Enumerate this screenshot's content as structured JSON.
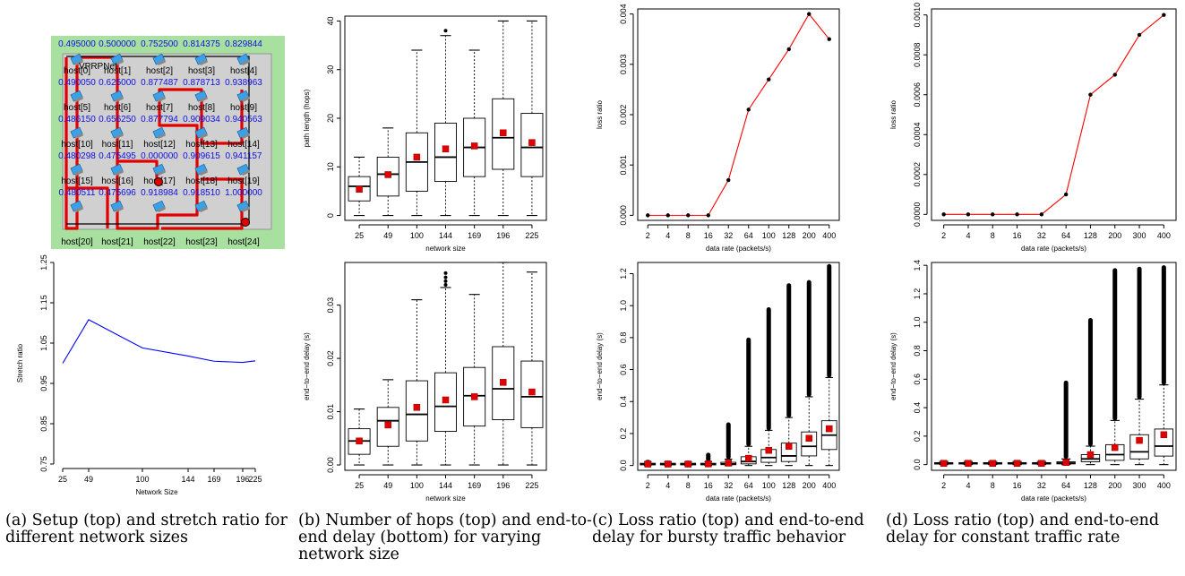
{
  "captions": [
    "(a) Setup (top) and stretch ratio for different network sizes",
    "(b) Number of hops (top) and end-to-end delay (bottom) for varying network size",
    "(c) Loss ratio (top) and end-to-end delay for bursty traffic behavior",
    "(d) Loss ratio (top) and end-to-end delay for constant traffic rate"
  ],
  "setup": {
    "network_label": "VPRPNet",
    "hosts": [
      {
        "name": "host[0]",
        "value": "0.490050"
      },
      {
        "name": "host[1]",
        "value": "0.625000"
      },
      {
        "name": "host[2]",
        "value": "0.877487"
      },
      {
        "name": "host[3]",
        "value": "0.878713"
      },
      {
        "name": "host[4]",
        "value": "0.938963"
      },
      {
        "name": "host[5]",
        "value": "0.486150"
      },
      {
        "name": "host[6]",
        "value": "0.656250"
      },
      {
        "name": "host[7]",
        "value": "0.877794"
      },
      {
        "name": "host[8]",
        "value": "0.909034"
      },
      {
        "name": "host[9]",
        "value": "0.940563"
      },
      {
        "name": "host[10]",
        "value": "0.480298"
      },
      {
        "name": "host[11]",
        "value": "0.475495"
      },
      {
        "name": "host[12]",
        "value": "0.000000"
      },
      {
        "name": "host[13]",
        "value": "0.909615"
      },
      {
        "name": "host[14]",
        "value": "0.941157"
      },
      {
        "name": "host[15]",
        "value": "0.480511"
      },
      {
        "name": "host[16]",
        "value": "0.475696"
      },
      {
        "name": "host[17]",
        "value": "0.918984"
      },
      {
        "name": "host[18]",
        "value": "0.918510"
      },
      {
        "name": "host[19]",
        "value": "1.000000"
      },
      {
        "name": "host[20]",
        "value": "0.495000"
      },
      {
        "name": "host[21]",
        "value": "0.500000"
      },
      {
        "name": "host[22]",
        "value": "0.752500"
      },
      {
        "name": "host[23]",
        "value": "0.814375"
      },
      {
        "name": "host[24]",
        "value": "0.829844"
      }
    ]
  },
  "chart_data": [
    {
      "id": "stretch",
      "type": "line",
      "xlabel": "Network Size",
      "ylabel": "Stretch ratio",
      "x": [
        25,
        49,
        100,
        144,
        169,
        196,
        225
      ],
      "y": [
        1.0,
        1.108,
        1.038,
        1.018,
        1.005,
        1.002,
        1.006
      ],
      "xlim": [
        25,
        225
      ],
      "ylim": [
        0.75,
        1.25
      ],
      "yticks": [
        "0.75",
        "0.85",
        "0.95",
        "1.05",
        "1.15",
        "1.25"
      ],
      "color": "#0000ff"
    },
    {
      "id": "hops",
      "type": "box",
      "xlabel": "network size",
      "ylabel": "path length (hops)",
      "categories": [
        "25",
        "49",
        "100",
        "144",
        "169",
        "196",
        "225"
      ],
      "ylim": [
        -1,
        41
      ],
      "yticks": [
        "0",
        "10",
        "20",
        "30",
        "40"
      ],
      "boxes": [
        {
          "min": 0,
          "q1": 3,
          "median": 6,
          "q3": 8,
          "max": 12,
          "mean": 5.4,
          "outliers": []
        },
        {
          "min": 0,
          "q1": 4,
          "median": 8.5,
          "q3": 12,
          "max": 18,
          "mean": 8.4,
          "outliers": []
        },
        {
          "min": 0,
          "q1": 5,
          "median": 11,
          "q3": 17,
          "max": 34,
          "mean": 12,
          "outliers": []
        },
        {
          "min": 0,
          "q1": 7,
          "median": 12,
          "q3": 19,
          "max": 37,
          "mean": 13.7,
          "outliers": [
            38
          ]
        },
        {
          "min": 0,
          "q1": 8,
          "median": 14,
          "q3": 20,
          "max": 34,
          "mean": 14.3,
          "outliers": []
        },
        {
          "min": 0,
          "q1": 9.5,
          "median": 16,
          "q3": 24,
          "max": 40,
          "mean": 17,
          "outliers": []
        },
        {
          "min": 0,
          "q1": 8,
          "median": 14,
          "q3": 21,
          "max": 40,
          "mean": 15,
          "outliers": []
        }
      ]
    },
    {
      "id": "delay_size",
      "type": "box",
      "xlabel": "network size",
      "ylabel": "end−to−end delay (s)",
      "categories": [
        "25",
        "49",
        "100",
        "144",
        "169",
        "196",
        "225"
      ],
      "ylim": [
        -0.001,
        0.038
      ],
      "yticks": [
        "0.00",
        "0.01",
        "0.02",
        "0.03"
      ],
      "boxes": [
        {
          "min": 0,
          "q1": 0.002,
          "median": 0.0045,
          "q3": 0.0068,
          "max": 0.0105,
          "mean": 0.0045,
          "outliers": []
        },
        {
          "min": 0,
          "q1": 0.0035,
          "median": 0.0083,
          "q3": 0.0108,
          "max": 0.016,
          "mean": 0.0075,
          "outliers": []
        },
        {
          "min": 0,
          "q1": 0.0045,
          "median": 0.0095,
          "q3": 0.0158,
          "max": 0.031,
          "mean": 0.0108,
          "outliers": []
        },
        {
          "min": 0,
          "q1": 0.0063,
          "median": 0.011,
          "q3": 0.0173,
          "max": 0.0333,
          "mean": 0.0122,
          "outliers": [
            0.0338,
            0.0345,
            0.0352,
            0.036
          ]
        },
        {
          "min": 0,
          "q1": 0.0073,
          "median": 0.013,
          "q3": 0.0183,
          "max": 0.032,
          "mean": 0.0128,
          "outliers": []
        },
        {
          "min": 0,
          "q1": 0.0085,
          "median": 0.0143,
          "q3": 0.0222,
          "max": 0.038,
          "mean": 0.0155,
          "outliers": []
        },
        {
          "min": 0,
          "q1": 0.007,
          "median": 0.0128,
          "q3": 0.0195,
          "max": 0.0362,
          "mean": 0.0137,
          "outliers": []
        }
      ]
    },
    {
      "id": "loss_bursty",
      "type": "line",
      "xlabel": "data rate (packets/s)",
      "ylabel": "loss ratio",
      "categories": [
        "2",
        "4",
        "8",
        "16",
        "32",
        "64",
        "100",
        "128",
        "200",
        "400"
      ],
      "y": [
        0,
        0,
        0,
        0,
        0.0007,
        0.0021,
        0.0027,
        0.0033,
        0.004,
        0.0035
      ],
      "ylim": [
        -0.0001,
        0.0041
      ],
      "yticks": [
        "0.000",
        "0.001",
        "0.002",
        "0.003",
        "0.004"
      ],
      "color": "#ff0000"
    },
    {
      "id": "loss_constant",
      "type": "line",
      "xlabel": "data rate (packets/s)",
      "ylabel": "loss ratio",
      "categories": [
        "2",
        "4",
        "8",
        "16",
        "32",
        "64",
        "128",
        "200",
        "300",
        "400"
      ],
      "y": [
        0,
        0,
        0,
        0,
        0,
        0.0001,
        0.0006,
        0.0007,
        0.0009,
        0.001
      ],
      "ylim": [
        -3e-05,
        0.00103
      ],
      "yticks": [
        "0.0000",
        "0.0002",
        "0.0004",
        "0.0006",
        "0.0008",
        "0.0010"
      ],
      "color": "#ff0000"
    },
    {
      "id": "delay_bursty",
      "type": "box",
      "xlabel": "data rate (packets/s)",
      "ylabel": "end−to−end delay (s)",
      "categories": [
        "2",
        "4",
        "8",
        "16",
        "32",
        "64",
        "100",
        "128",
        "200",
        "400"
      ],
      "ylim": [
        -0.03,
        1.27
      ],
      "yticks": [
        "0.0",
        "0.2",
        "0.4",
        "0.6",
        "0.8",
        "1.0",
        "1.2"
      ],
      "boxes": [
        {
          "min": 0,
          "q1": 0.004,
          "median": 0.008,
          "q3": 0.014,
          "max": 0.022,
          "mean": 0.009,
          "outlier_range": [
            0.022,
            0.035
          ]
        },
        {
          "min": 0,
          "q1": 0.004,
          "median": 0.008,
          "q3": 0.014,
          "max": 0.022,
          "mean": 0.009,
          "outlier_range": [
            0.022,
            0.03
          ]
        },
        {
          "min": 0,
          "q1": 0.004,
          "median": 0.008,
          "q3": 0.014,
          "max": 0.022,
          "mean": 0.009,
          "outlier_range": [
            0.022,
            0.03
          ]
        },
        {
          "min": 0,
          "q1": 0.004,
          "median": 0.008,
          "q3": 0.014,
          "max": 0.024,
          "mean": 0.01,
          "outlier_range": [
            0.024,
            0.08
          ]
        },
        {
          "min": 0,
          "q1": 0.005,
          "median": 0.01,
          "q3": 0.02,
          "max": 0.04,
          "mean": 0.015,
          "outlier_range": [
            0.04,
            0.27
          ]
        },
        {
          "min": 0,
          "q1": 0.01,
          "median": 0.025,
          "q3": 0.055,
          "max": 0.12,
          "mean": 0.045,
          "outlier_range": [
            0.12,
            0.8
          ]
        },
        {
          "min": 0,
          "q1": 0.02,
          "median": 0.05,
          "q3": 0.1,
          "max": 0.22,
          "mean": 0.095,
          "outlier_range": [
            0.22,
            0.99
          ]
        },
        {
          "min": 0,
          "q1": 0.025,
          "median": 0.06,
          "q3": 0.14,
          "max": 0.3,
          "mean": 0.12,
          "outlier_range": [
            0.3,
            1.14
          ]
        },
        {
          "min": 0,
          "q1": 0.06,
          "median": 0.12,
          "q3": 0.21,
          "max": 0.43,
          "mean": 0.17,
          "outlier_range": [
            0.43,
            1.16
          ]
        },
        {
          "min": 0,
          "q1": 0.1,
          "median": 0.19,
          "q3": 0.28,
          "max": 0.55,
          "mean": 0.23,
          "outlier_range": [
            0.55,
            1.26
          ]
        }
      ]
    },
    {
      "id": "delay_constant",
      "type": "box",
      "xlabel": "data rate (packets/s)",
      "ylabel": "end−to−end delay (s)",
      "categories": [
        "2",
        "4",
        "8",
        "16",
        "32",
        "64",
        "128",
        "200",
        "300",
        "400"
      ],
      "ylim": [
        -0.04,
        1.42
      ],
      "yticks": [
        "0.0",
        "0.2",
        "0.4",
        "0.6",
        "0.8",
        "1.0",
        "1.2",
        "1.4"
      ],
      "boxes": [
        {
          "min": 0,
          "q1": 0.004,
          "median": 0.008,
          "q3": 0.014,
          "max": 0.022,
          "mean": 0.009,
          "outlier_range": [
            0.022,
            0.03
          ]
        },
        {
          "min": 0,
          "q1": 0.004,
          "median": 0.008,
          "q3": 0.014,
          "max": 0.022,
          "mean": 0.009,
          "outlier_range": [
            0.022,
            0.03
          ]
        },
        {
          "min": 0,
          "q1": 0.004,
          "median": 0.008,
          "q3": 0.014,
          "max": 0.022,
          "mean": 0.009,
          "outlier_range": [
            0.022,
            0.03
          ]
        },
        {
          "min": 0,
          "q1": 0.004,
          "median": 0.008,
          "q3": 0.014,
          "max": 0.022,
          "mean": 0.009,
          "outlier_range": [
            0.022,
            0.03
          ]
        },
        {
          "min": 0,
          "q1": 0.004,
          "median": 0.008,
          "q3": 0.014,
          "max": 0.022,
          "mean": 0.009,
          "outlier_range": [
            0.022,
            0.03
          ]
        },
        {
          "min": 0,
          "q1": 0.005,
          "median": 0.01,
          "q3": 0.02,
          "max": 0.04,
          "mean": 0.015,
          "outlier_range": [
            0.04,
            0.59
          ]
        },
        {
          "min": 0,
          "q1": 0.02,
          "median": 0.04,
          "q3": 0.07,
          "max": 0.13,
          "mean": 0.07,
          "outlier_range": [
            0.13,
            1.03
          ]
        },
        {
          "min": 0,
          "q1": 0.03,
          "median": 0.07,
          "q3": 0.14,
          "max": 0.31,
          "mean": 0.12,
          "outlier_range": [
            0.31,
            1.38
          ]
        },
        {
          "min": 0,
          "q1": 0.04,
          "median": 0.09,
          "q3": 0.21,
          "max": 0.46,
          "mean": 0.17,
          "outlier_range": [
            0.46,
            1.39
          ]
        },
        {
          "min": 0,
          "q1": 0.06,
          "median": 0.13,
          "q3": 0.25,
          "max": 0.56,
          "mean": 0.21,
          "outlier_range": [
            0.56,
            1.4
          ]
        }
      ]
    }
  ]
}
